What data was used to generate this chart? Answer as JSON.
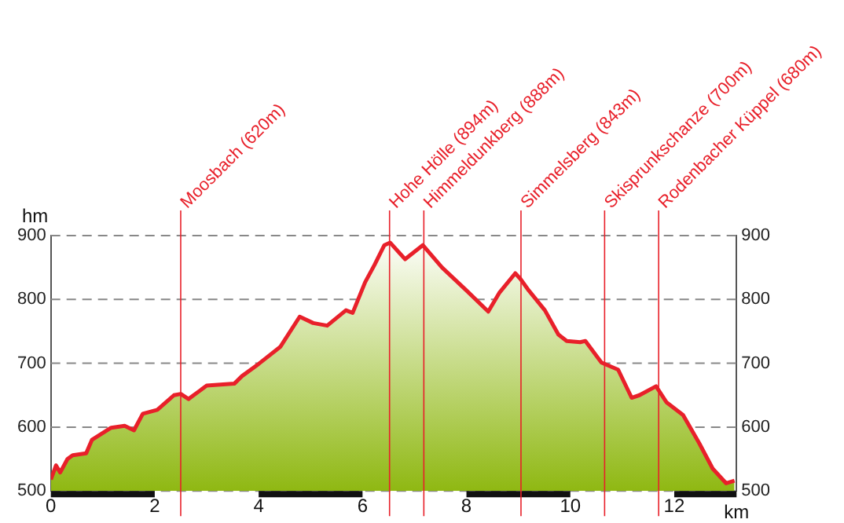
{
  "chart_data": {
    "type": "area",
    "xlabel": "km",
    "ylabel": "hm",
    "x": [
      0,
      0.1,
      0.18,
      0.32,
      0.42,
      0.68,
      0.79,
      1.16,
      1.42,
      1.6,
      1.77,
      2.05,
      2.37,
      2.5,
      2.65,
      3.0,
      3.53,
      3.68,
      4.0,
      4.42,
      4.79,
      5.05,
      5.32,
      5.68,
      5.81,
      6.05,
      6.23,
      6.42,
      6.53,
      6.82,
      7.16,
      7.53,
      8.0,
      8.42,
      8.63,
      8.94,
      9.04,
      9.2,
      9.51,
      9.77,
      9.93,
      10.19,
      10.29,
      10.6,
      10.92,
      11.18,
      11.33,
      11.65,
      11.85,
      12.17,
      12.48,
      12.74,
      13.0,
      13.16
    ],
    "series": [
      {
        "color": "#e8202a",
        "values": [
          518,
          540,
          529,
          550,
          556,
          559,
          580,
          599,
          602,
          595,
          621,
          627,
          650,
          652,
          644,
          665,
          668,
          680,
          699,
          726,
          773,
          763,
          759,
          783,
          779,
          827,
          854,
          885,
          889,
          863,
          885,
          850,
          814,
          781,
          810,
          841,
          832,
          814,
          783,
          745,
          735,
          733,
          735,
          701,
          690,
          646,
          650,
          664,
          639,
          619,
          575,
          535,
          512,
          516
        ]
      }
    ],
    "xlim": [
      0,
      13.2
    ],
    "xticks": [
      0,
      2,
      4,
      6,
      8,
      10,
      12
    ],
    "ylim": [
      500,
      900
    ],
    "yticks": [
      500,
      600,
      700,
      800,
      900
    ],
    "y2lim": [
      500,
      900
    ],
    "y2ticks": [
      500,
      600,
      700,
      800,
      900
    ],
    "grid": "y",
    "legend": false,
    "marker": "none",
    "line_style": "solid",
    "ref_lines": [
      {
        "axis": "x",
        "value": 2.5,
        "label": "Moosbach (620m)",
        "color": "#e8202a"
      },
      {
        "axis": "x",
        "value": 6.52,
        "label": "Hohe Hölle (894m)",
        "color": "#e8202a"
      },
      {
        "axis": "x",
        "value": 7.18,
        "label": "Himmeldunkberg (888m)",
        "color": "#e8202a"
      },
      {
        "axis": "x",
        "value": 9.05,
        "label": "Simmelsberg (843m)",
        "color": "#e8202a"
      },
      {
        "axis": "x",
        "value": 10.66,
        "label": "Skisprunkschanze (700m)",
        "color": "#e8202a"
      },
      {
        "axis": "x",
        "value": 11.7,
        "label": "Rodenbacher Küppel (680m)",
        "color": "#e8202a"
      }
    ]
  }
}
